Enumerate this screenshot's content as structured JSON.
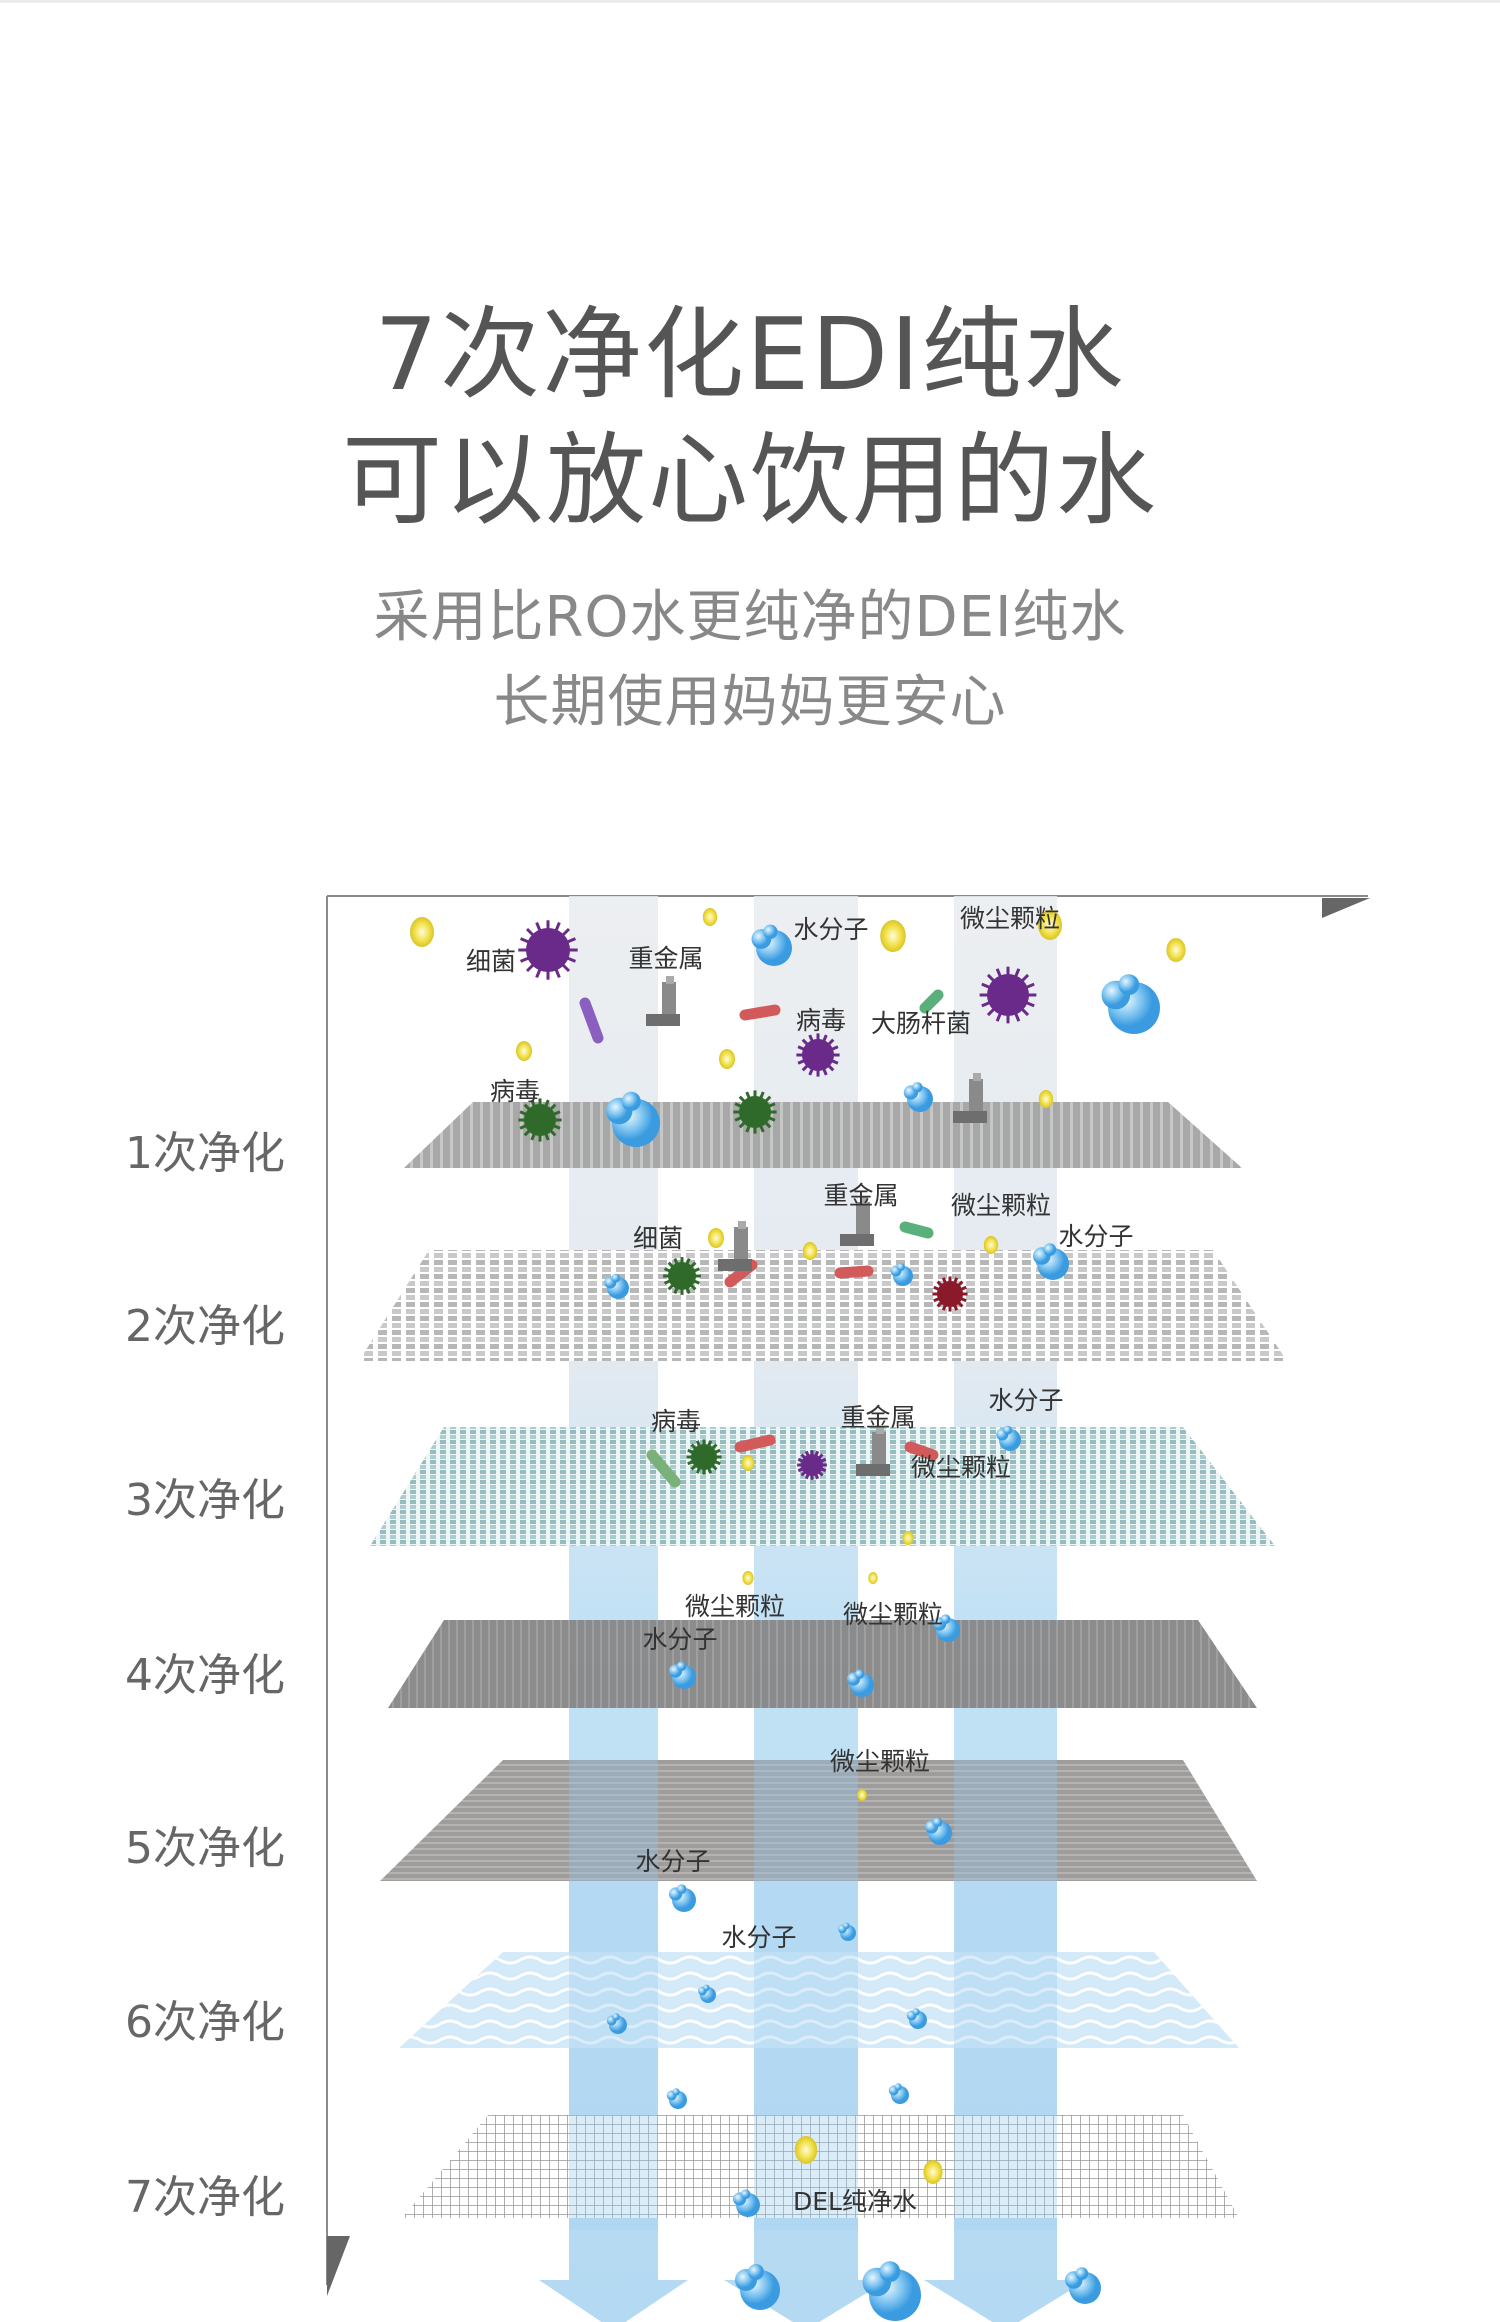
{
  "header": {
    "title_line1": "7次净化EDI纯水",
    "title_line2": "可以放心饮用的水",
    "subtitle_line1": "采用比RO水更纯净的DEI纯水",
    "subtitle_line2": "长期使用妈妈更安心"
  },
  "stages": [
    "1次净化",
    "2次净化",
    "3次净化",
    "4次净化",
    "5次净化",
    "6次净化",
    "7次净化"
  ],
  "particle_labels": [
    "细菌",
    "重金属",
    "水分子",
    "微尘颗粒",
    "病毒",
    "大肠杆菌",
    "病毒",
    "重金属",
    "微尘颗粒",
    "细菌",
    "水分子",
    "病毒",
    "重金属",
    "水分子",
    "微尘颗粒",
    "微尘颗粒",
    "微尘颗粒",
    "水分子",
    "微尘颗粒",
    "水分子",
    "水分子",
    "DEL纯净水"
  ],
  "colors": {
    "title": "#555555",
    "subtitle": "#888888",
    "water_flow": "#a9d3ef",
    "dust": "#f2e14a",
    "virus_purple": "#6a2a8a",
    "virus_green": "#2f6a2a"
  }
}
